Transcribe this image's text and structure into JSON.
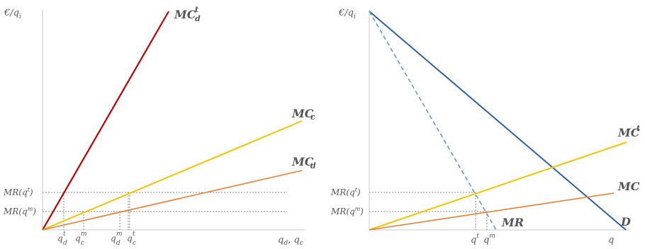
{
  "left_panel": {
    "y_axis_label": "€/q",
    "y_axis_label_sub": "i",
    "x_axis_label": "q",
    "x_axis_label_sub_1": "d",
    "x_axis_label_sep": ", ",
    "x_axis_label_2": "q",
    "x_axis_label_sub_2": "c",
    "y_ticks": [
      {
        "base": "MR(q",
        "sup": "t",
        "tail": ")"
      },
      {
        "base": "MR(q",
        "sup": "m",
        "tail": ")"
      }
    ],
    "x_ticks": [
      {
        "base": "q",
        "sup": "t",
        "sub": "d"
      },
      {
        "base": "q",
        "sup": "m",
        "sub": "c"
      },
      {
        "base": "q",
        "sup": "m",
        "sub": "d"
      },
      {
        "base": "q",
        "sup": "t",
        "sub": "c"
      }
    ],
    "curves": [
      {
        "id": "mc-d-t",
        "base": "MC",
        "sup": "t",
        "sub": "d",
        "color": "#c00000"
      },
      {
        "id": "mc-c",
        "base": "MC",
        "sup": "",
        "sub": "c",
        "color": "#f5c400"
      },
      {
        "id": "mc-d",
        "base": "MC",
        "sup": "",
        "sub": "d",
        "color": "#ed7d31"
      }
    ]
  },
  "right_panel": {
    "y_axis_label": "€/q",
    "y_axis_label_sub": "i",
    "x_axis_label": "q",
    "y_ticks": [
      {
        "base": "MR(q",
        "sup": "t",
        "tail": ")"
      },
      {
        "base": "MR(q",
        "sup": "m",
        "tail": ")"
      }
    ],
    "x_ticks": [
      {
        "base": "q",
        "sup": "t"
      },
      {
        "base": "q",
        "sup": "m"
      }
    ],
    "curves": [
      {
        "id": "mc-t",
        "base": "MC",
        "sup": "t",
        "color": "#f5c400"
      },
      {
        "id": "mc",
        "base": "MC",
        "color": "#ed7d31"
      },
      {
        "id": "mr",
        "base": "MR",
        "color": "#2f5fa7"
      },
      {
        "id": "demand",
        "base": "D",
        "color": "#2f5fa7"
      }
    ],
    "mr_line_color": "#5b9bd5"
  }
}
